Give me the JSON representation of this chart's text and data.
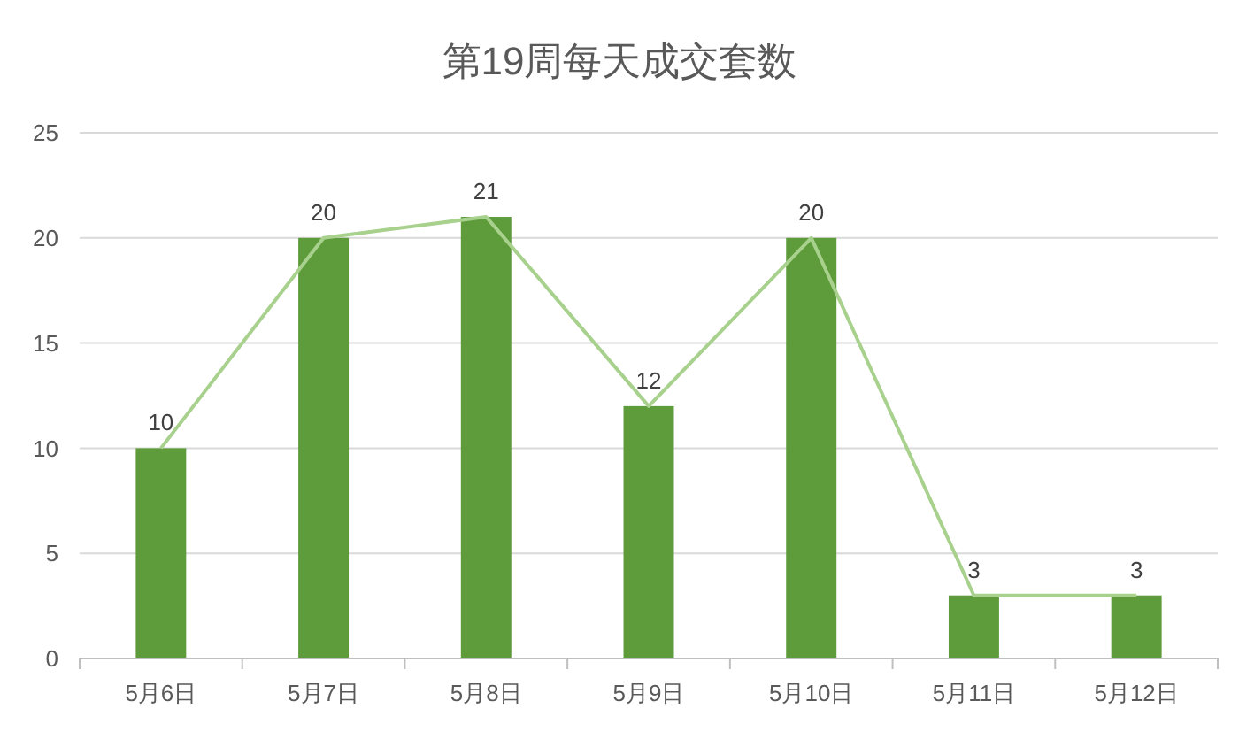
{
  "chart_data": {
    "type": "bar",
    "title": "第19周每天成交套数",
    "categories": [
      "5月6日",
      "5月7日",
      "5月8日",
      "5月9日",
      "5月10日",
      "5月11日",
      "5月12日"
    ],
    "series": [
      {
        "color": "#5e9b3b",
        "values": [
          10,
          20,
          21,
          12,
          20,
          3,
          3
        ],
        "value_labels": [
          "10",
          "20",
          "21",
          "12",
          "20",
          "3",
          "3"
        ]
      },
      {
        "type": "line",
        "color": "#a9d18e",
        "values": [
          10,
          20,
          21,
          12,
          20,
          3,
          3
        ]
      }
    ],
    "ylim": [
      0,
      25
    ],
    "yticks": [
      0,
      5,
      10,
      15,
      20,
      25
    ],
    "grid": "y",
    "marker": "none"
  }
}
